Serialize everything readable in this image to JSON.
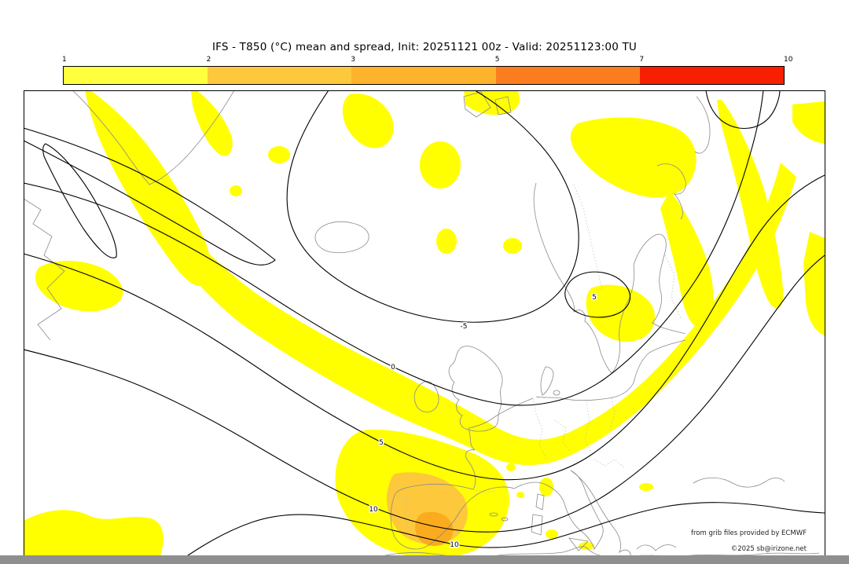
{
  "title": "IFS - T850 (°C) mean and spread, Init: 20251121 00z - Valid: 20251123:00 TU",
  "colorbar": {
    "ticks": [
      "1",
      "2",
      "3",
      "5",
      "7",
      "10"
    ],
    "segments": [
      "#ffff3d",
      "#fdc83c",
      "#fdb32b",
      "#fb7d20",
      "#f71f00"
    ]
  },
  "map": {
    "shading_colors": {
      "low": "#ffff00",
      "mid": "#fdc83c",
      "high": "#fbab1e"
    },
    "contour_labels": [
      {
        "text": "0"
      },
      {
        "text": "5"
      },
      {
        "text": "-5"
      },
      {
        "text": "5"
      },
      {
        "text": "10"
      },
      {
        "text": "10"
      }
    ],
    "credit_line1": "from grib files provided by ECMWF",
    "credit_line2": "©2025 sb@irizone.net"
  },
  "chart_data": {
    "type": "heatmap",
    "title": "IFS - T850 (°C) mean and spread, Init: 20251121 00z - Valid: 20251123:00 TU",
    "legend_values": [
      1,
      2,
      3,
      5,
      7,
      10
    ],
    "legend_colors": [
      "#ffff3d",
      "#fdc83c",
      "#fdb32b",
      "#fb7d20",
      "#f71f00"
    ],
    "contour_labels_visible": [
      "-5",
      "0",
      "5",
      "10"
    ]
  }
}
